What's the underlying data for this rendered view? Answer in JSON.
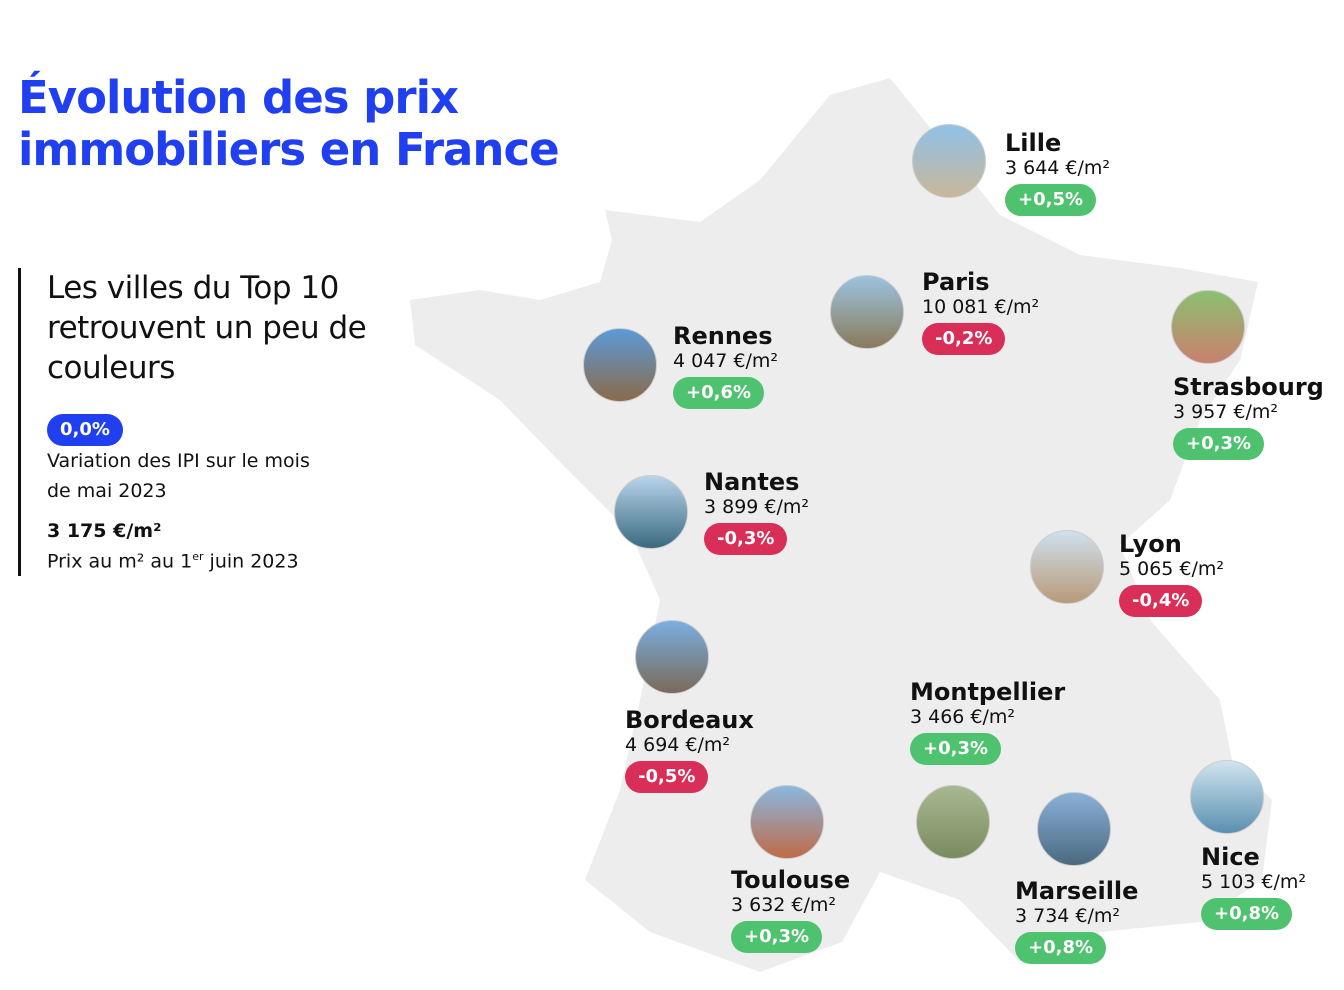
{
  "title_line1": "Évolution des prix",
  "title_line2": "immobiliers en France",
  "side": {
    "heading": "Les villes du Top 10 retrouvent un peu de couleurs",
    "variation": "0,0%",
    "variation_label": "Variation des IPI sur le mois de mai 2023",
    "price": "3 175 €/m²",
    "price_label_pre": "Prix au m² au 1",
    "price_label_sup": "er",
    "price_label_post": " juin 2023"
  },
  "colors": {
    "title": "#1f3ff0",
    "positive": "#4fc26f",
    "negative": "#d92e58",
    "map": "#ededed"
  },
  "cities": [
    {
      "name": "Lille",
      "price": "3 644 €/m²",
      "change": "+0,5%",
      "trend": "up"
    },
    {
      "name": "Paris",
      "price": "10 081 €/m²",
      "change": "-0,2%",
      "trend": "down"
    },
    {
      "name": "Rennes",
      "price": "4 047 €/m²",
      "change": "+0,6%",
      "trend": "up"
    },
    {
      "name": "Strasbourg",
      "price": "3 957 €/m²",
      "change": "+0,3%",
      "trend": "up"
    },
    {
      "name": "Nantes",
      "price": "3 899 €/m²",
      "change": "-0,3%",
      "trend": "down"
    },
    {
      "name": "Lyon",
      "price": "5 065 €/m²",
      "change": "-0,4%",
      "trend": "down"
    },
    {
      "name": "Bordeaux",
      "price": "4 694 €/m²",
      "change": "-0,5%",
      "trend": "down"
    },
    {
      "name": "Montpellier",
      "price": "3 466 €/m²",
      "change": "+0,3%",
      "trend": "up"
    },
    {
      "name": "Toulouse",
      "price": "3 632 €/m²",
      "change": "+0,3%",
      "trend": "up"
    },
    {
      "name": "Marseille",
      "price": "3 734 €/m²",
      "change": "+0,8%",
      "trend": "up"
    },
    {
      "name": "Nice",
      "price": "5 103 €/m²",
      "change": "+0,8%",
      "trend": "up"
    }
  ]
}
